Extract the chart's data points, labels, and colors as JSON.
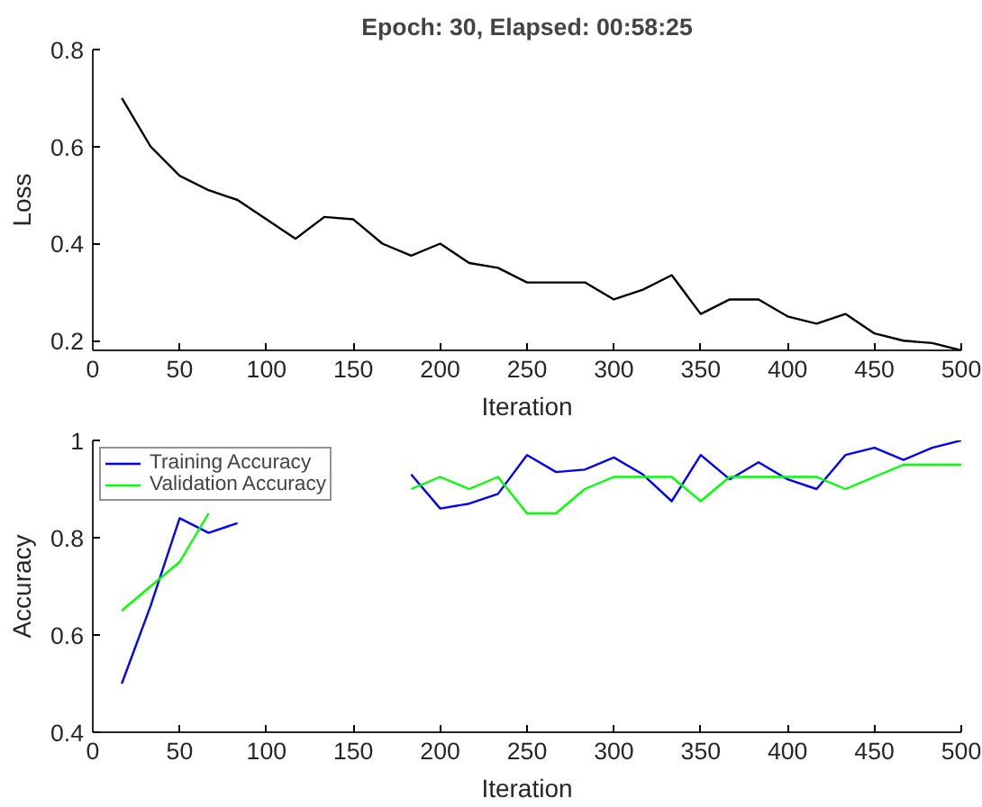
{
  "chart_data": [
    {
      "type": "line",
      "title": "Epoch: 30, Elapsed: 00:58:25",
      "xlabel": "Iteration",
      "ylabel": "Loss",
      "x": [
        16.7,
        33.3,
        50,
        66.7,
        83.3,
        100,
        116.7,
        133.3,
        150,
        166.7,
        183.3,
        200,
        216.7,
        233.3,
        250,
        266.7,
        283.3,
        300,
        316.7,
        333.3,
        350,
        366.7,
        383.3,
        400,
        416.7,
        433.3,
        450,
        466.7,
        483.3,
        500
      ],
      "series": [
        {
          "color": "#000000",
          "values": [
            0.7,
            0.6,
            0.54,
            0.51,
            0.49,
            0.45,
            0.41,
            0.455,
            0.45,
            0.4,
            0.375,
            0.4,
            0.36,
            0.35,
            0.32,
            0.32,
            0.32,
            0.285,
            0.305,
            0.335,
            0.255,
            0.285,
            0.285,
            0.25,
            0.235,
            0.255,
            0.215,
            0.2,
            0.195,
            0.18
          ]
        }
      ],
      "xlim": [
        0,
        500
      ],
      "xticks": [
        0,
        50,
        100,
        150,
        200,
        250,
        300,
        350,
        400,
        450,
        500
      ],
      "ylim": [
        0.18,
        0.8
      ],
      "yticks": [
        0.2,
        0.4,
        0.6,
        0.8
      ],
      "grid": false,
      "legend": false
    },
    {
      "type": "line",
      "xlabel": "Iteration",
      "ylabel": "Accuracy",
      "x": [
        16.7,
        33.3,
        50,
        66.7,
        83.3,
        100,
        116.7,
        133.3,
        150,
        166.7,
        183.3,
        200,
        216.7,
        233.3,
        250,
        266.7,
        283.3,
        300,
        316.7,
        333.3,
        350,
        366.7,
        383.3,
        400,
        416.7,
        433.3,
        450,
        466.7,
        483.3,
        500
      ],
      "series": [
        {
          "name": "Training Accuracy",
          "color": "#0000ff",
          "values": [
            0.5,
            0.66,
            0.84,
            0.81,
            0.83,
            null,
            null,
            null,
            null,
            null,
            0.93,
            0.86,
            0.87,
            0.89,
            0.97,
            0.935,
            0.94,
            0.965,
            0.93,
            0.875,
            0.97,
            0.92,
            0.955,
            0.92,
            0.9,
            0.97,
            0.985,
            0.96,
            0.985,
            1.0
          ]
        },
        {
          "name": "Validation Accuracy",
          "color": "#00ff00",
          "values": [
            0.65,
            0.7,
            0.75,
            0.85,
            null,
            null,
            null,
            null,
            null,
            null,
            0.9,
            0.925,
            0.9,
            0.925,
            0.85,
            0.85,
            0.9,
            0.925,
            0.925,
            0.925,
            0.875,
            0.925,
            0.925,
            0.925,
            0.925,
            0.9,
            0.925,
            0.95,
            0.95,
            0.95
          ]
        }
      ],
      "xlim": [
        0,
        500
      ],
      "xticks": [
        0,
        50,
        100,
        150,
        200,
        250,
        300,
        350,
        400,
        450,
        500
      ],
      "ylim": [
        0.4,
        1
      ],
      "yticks": [
        0.4,
        0.6,
        0.8,
        1
      ],
      "grid": false,
      "legend": "top left"
    }
  ]
}
